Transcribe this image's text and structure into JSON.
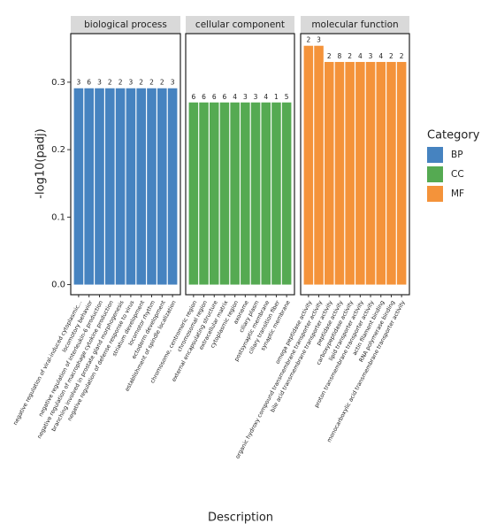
{
  "chart_data": {
    "type": "bar",
    "ylabel": "-log10(padj)",
    "xlabel": "Description",
    "legend_title": "Category",
    "ylim": [
      -0.015,
      0.372
    ],
    "yticks": [
      {
        "value": 0,
        "label": "0.0"
      },
      0.1,
      0.2,
      0.3
    ],
    "grid": false,
    "facets": [
      {
        "title": "biological process",
        "legend": "BP",
        "color": "#4683c0",
        "categories": [
          "negative regulation of viral-induced cytoplasmic...",
          "locomotory behavior",
          "negative regulation of interleukin-6 production",
          "negative regulation of macrophage cytokine production",
          "branching involved in prostate gland morphogenesis",
          "negative regulation of defense response to virus",
          "striatum development",
          "locomotor rhythm",
          "ectoderm development",
          "establishment of spindle localization"
        ],
        "values": [
          0.291,
          0.291,
          0.291,
          0.291,
          0.291,
          0.291,
          0.291,
          0.291,
          0.291,
          0.291
        ],
        "counts": [
          3,
          6,
          3,
          2,
          2,
          3,
          2,
          2,
          2,
          3
        ]
      },
      {
        "title": "cellular component",
        "legend": "CC",
        "color": "#55aa52",
        "categories": [
          "chromosome, centromeric region",
          "chromosomal region",
          "external encapsulating structure",
          "extracellular matrix",
          "cytoplasmic region",
          "axoneme",
          "ciliary plasm",
          "postsynaptic membrane",
          "ciliary transition fiber",
          "synaptic membrane"
        ],
        "values": [
          0.27,
          0.27,
          0.27,
          0.27,
          0.27,
          0.27,
          0.27,
          0.27,
          0.27,
          0.27
        ],
        "counts": [
          6,
          6,
          6,
          6,
          4,
          3,
          3,
          4,
          1,
          5
        ]
      },
      {
        "title": "molecular function",
        "legend": "MF",
        "color": "#f4933a",
        "categories": [
          "omega peptidase activity",
          "organic hydroxy compound transmembrane transporter activity",
          "bile acid transmembrane transporter activity",
          "peptidase activity",
          "carboxypeptidase activity",
          "lipid transporter activity",
          "proton transmembrane transporter activity",
          "actin filament binding",
          "RNA polymerase binding",
          "monocarboxylic acid transmembrane transporter activity"
        ],
        "values": [
          0.354,
          0.354,
          0.33,
          0.33,
          0.33,
          0.33,
          0.33,
          0.33,
          0.33,
          0.33
        ],
        "counts": [
          2,
          3,
          2,
          8,
          2,
          4,
          3,
          4,
          2,
          2
        ]
      }
    ]
  }
}
